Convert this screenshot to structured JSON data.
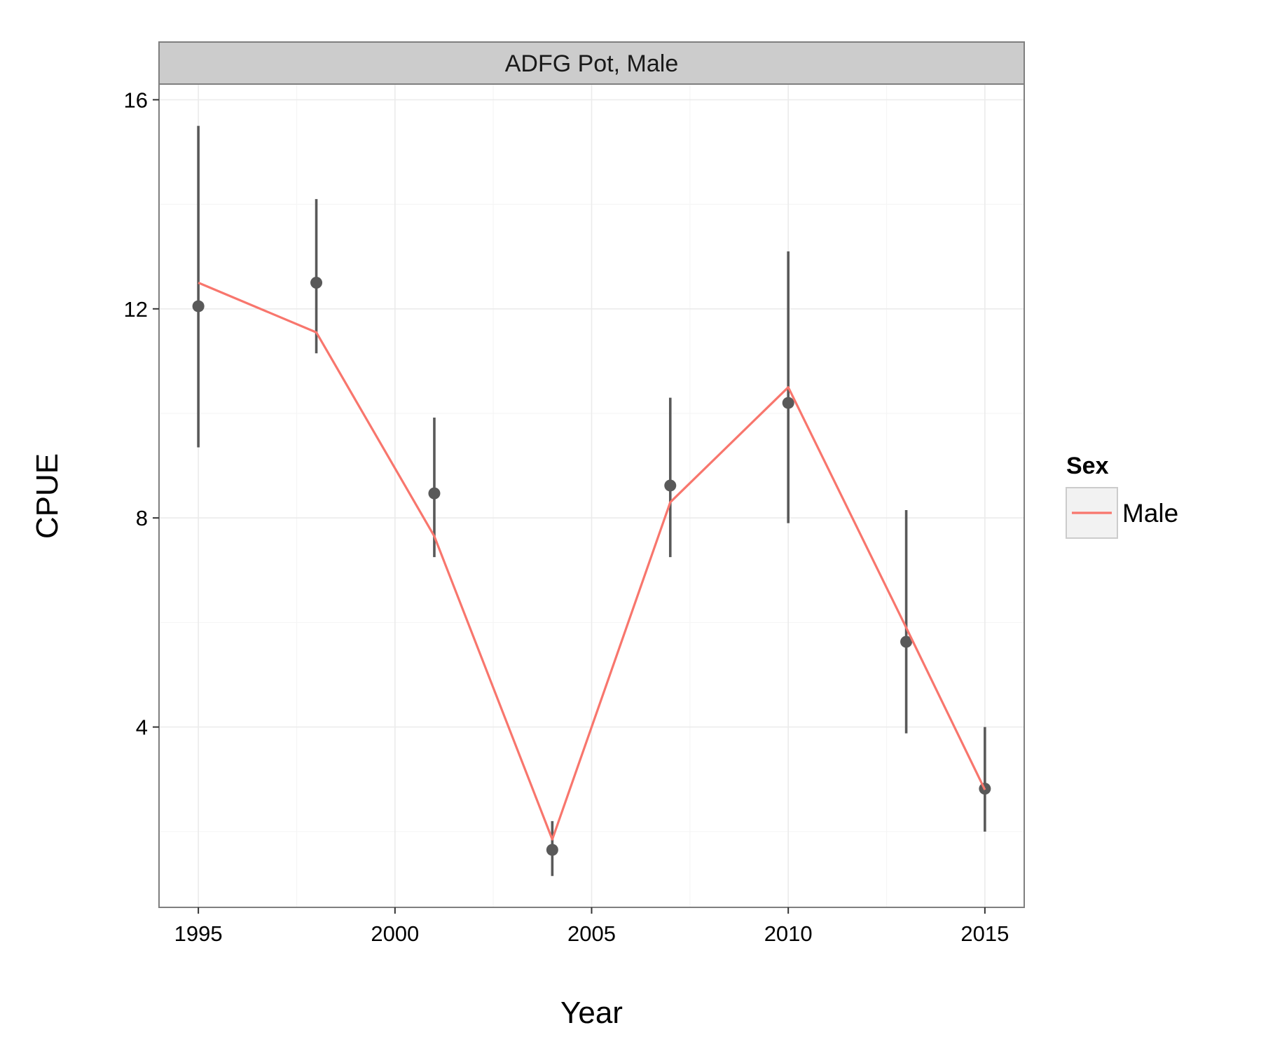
{
  "chart_data": {
    "type": "line",
    "panel_title": "ADFG Pot, Male",
    "xlabel": "Year",
    "ylabel": "CPUE",
    "xlim": [
      1994,
      2016
    ],
    "ylim": [
      0.55,
      16.3
    ],
    "x_ticks": [
      1995,
      2000,
      2005,
      2010,
      2015
    ],
    "x_minor": [
      1997.5,
      2002.5,
      2007.5,
      2012.5
    ],
    "y_ticks": [
      4,
      8,
      12,
      16
    ],
    "y_minor": [
      2,
      6,
      10,
      14
    ],
    "grid": true,
    "legend": {
      "title": "Sex",
      "placement": "right",
      "entries": [
        "Male"
      ]
    },
    "observed": {
      "x": [
        1995,
        1998,
        2001,
        2004,
        2007,
        2010,
        2013,
        2015
      ],
      "y": [
        12.05,
        12.5,
        8.47,
        1.65,
        8.62,
        10.2,
        5.63,
        2.82
      ],
      "lower": [
        9.35,
        11.15,
        7.25,
        1.15,
        7.25,
        7.9,
        3.88,
        2.0
      ],
      "upper": [
        15.5,
        14.1,
        9.92,
        2.2,
        10.3,
        13.1,
        8.15,
        4.0
      ]
    },
    "series": [
      {
        "name": "Male",
        "x": [
          1995,
          1998,
          2001,
          2004,
          2007,
          2010,
          2013,
          2015
        ],
        "y": [
          12.5,
          11.55,
          7.65,
          1.85,
          8.3,
          10.5,
          5.9,
          2.8
        ]
      }
    ]
  },
  "colors": {
    "line": "#f8766d",
    "points": "#595959",
    "strip_fill": "#cccccc",
    "panel_border": "#7f7f7f",
    "grid_major": "#ebebeb",
    "grid_minor": "#f5f5f5"
  }
}
